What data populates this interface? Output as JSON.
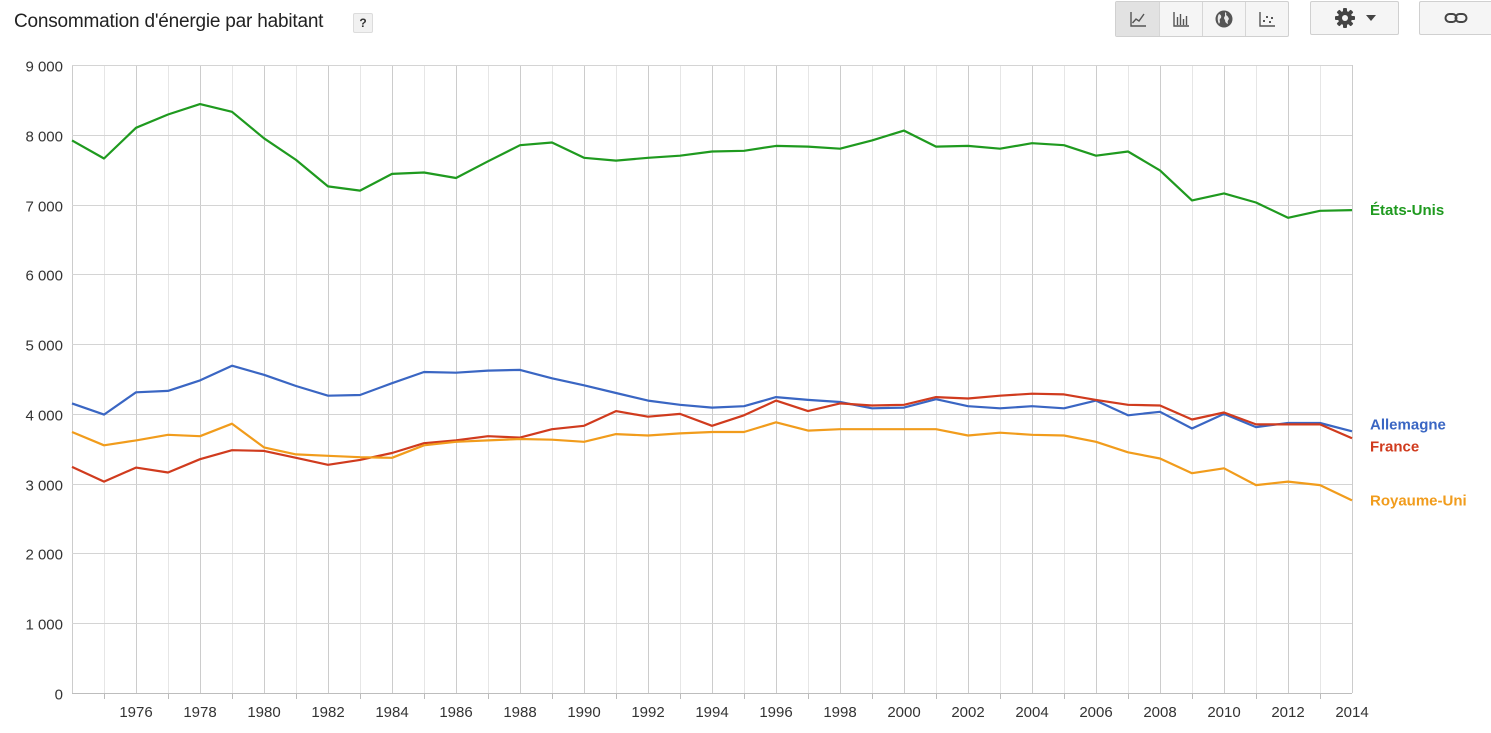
{
  "header": {
    "title": "Consommation d'énergie par habitant",
    "help_label": "?"
  },
  "toolbar": {
    "buttons": [
      {
        "icon": "line-chart-icon"
      },
      {
        "icon": "bar-chart-icon"
      },
      {
        "icon": "globe-icon"
      },
      {
        "icon": "scatter-chart-icon"
      }
    ],
    "settings_icon": "gear-icon",
    "dropdown_icon": "caret-down-icon",
    "link_icon": "link-icon"
  },
  "chart_data": {
    "type": "line",
    "title": "",
    "xlabel": "",
    "ylabel": "",
    "xlim": [
      1974,
      2014
    ],
    "ylim": [
      0,
      9000
    ],
    "x_ticks": [
      1976,
      1978,
      1980,
      1982,
      1984,
      1986,
      1988,
      1990,
      1992,
      1994,
      1996,
      1998,
      2000,
      2002,
      2004,
      2006,
      2008,
      2010,
      2012,
      2014
    ],
    "y_ticks": [
      0,
      1000,
      2000,
      3000,
      4000,
      5000,
      6000,
      7000,
      8000,
      9000
    ],
    "y_tick_labels": [
      "0",
      "1 000",
      "2 000",
      "3 000",
      "4 000",
      "5 000",
      "6 000",
      "7 000",
      "8 000",
      "9 000"
    ],
    "grid": true,
    "legend": "right end labels",
    "x": [
      1974,
      1975,
      1976,
      1977,
      1978,
      1979,
      1980,
      1981,
      1982,
      1983,
      1984,
      1985,
      1986,
      1987,
      1988,
      1989,
      1990,
      1991,
      1992,
      1993,
      1994,
      1995,
      1996,
      1997,
      1998,
      1999,
      2000,
      2001,
      2002,
      2003,
      2004,
      2005,
      2006,
      2007,
      2008,
      2009,
      2010,
      2011,
      2012,
      2013,
      2014
    ],
    "series": [
      {
        "name": "États-Unis",
        "color": "#1f9a1f",
        "values": [
          7920,
          7660,
          8100,
          8290,
          8440,
          8330,
          7950,
          7640,
          7260,
          7200,
          7440,
          7460,
          7380,
          7620,
          7850,
          7890,
          7670,
          7630,
          7670,
          7700,
          7760,
          7770,
          7840,
          7830,
          7800,
          7920,
          8060,
          7830,
          7840,
          7800,
          7880,
          7850,
          7700,
          7760,
          7490,
          7060,
          7160,
          7030,
          6810,
          6910,
          6920
        ]
      },
      {
        "name": "Allemagne",
        "color": "#3a66c3",
        "values": [
          4150,
          3990,
          4310,
          4330,
          4480,
          4690,
          4560,
          4400,
          4260,
          4270,
          4440,
          4600,
          4590,
          4620,
          4630,
          4510,
          4410,
          4300,
          4190,
          4130,
          4090,
          4110,
          4240,
          4200,
          4170,
          4080,
          4090,
          4210,
          4110,
          4080,
          4110,
          4080,
          4190,
          3980,
          4030,
          3790,
          4000,
          3810,
          3870,
          3870,
          3750
        ]
      },
      {
        "name": "France",
        "color": "#d03b1e",
        "values": [
          3240,
          3030,
          3230,
          3160,
          3350,
          3480,
          3470,
          3370,
          3270,
          3340,
          3440,
          3580,
          3620,
          3680,
          3660,
          3780,
          3830,
          4040,
          3960,
          4000,
          3830,
          3980,
          4190,
          4040,
          4150,
          4120,
          4130,
          4240,
          4220,
          4260,
          4290,
          4280,
          4200,
          4130,
          4120,
          3920,
          4020,
          3850,
          3850,
          3850,
          3650
        ]
      },
      {
        "name": "Royaume-Uni",
        "color": "#f19c1c",
        "values": [
          3740,
          3550,
          3620,
          3700,
          3680,
          3860,
          3520,
          3420,
          3400,
          3380,
          3370,
          3550,
          3600,
          3620,
          3640,
          3630,
          3600,
          3710,
          3690,
          3720,
          3740,
          3740,
          3880,
          3760,
          3780,
          3780,
          3780,
          3780,
          3690,
          3730,
          3700,
          3690,
          3600,
          3450,
          3360,
          3150,
          3220,
          2980,
          3030,
          2980,
          2760
        ]
      }
    ]
  }
}
